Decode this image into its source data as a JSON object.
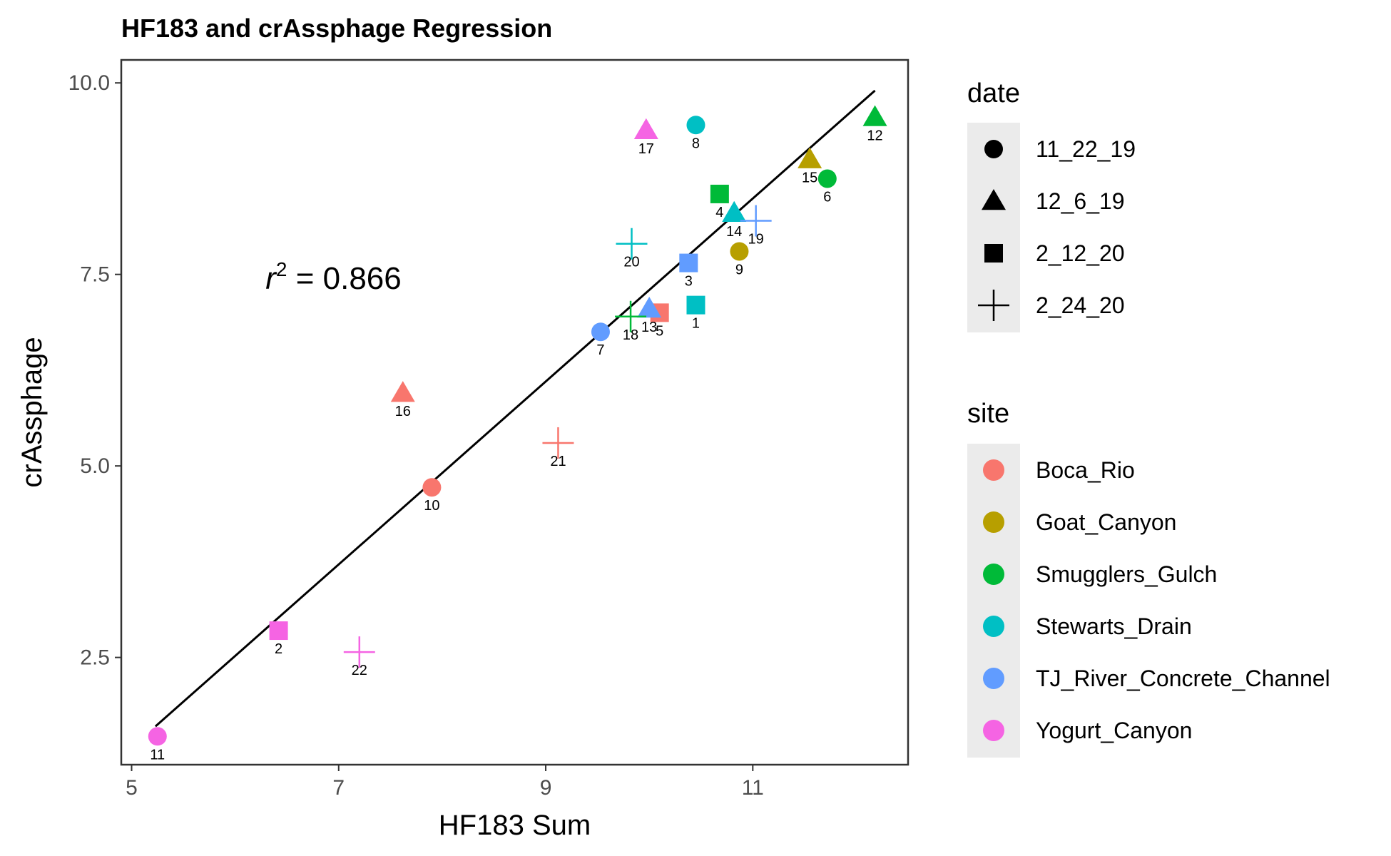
{
  "chart_data": {
    "type": "scatter",
    "title": "HF183 and crAssphage Regression",
    "xlabel": "HF183 Sum",
    "ylabel": "crAssphage",
    "xlim": [
      4.9,
      12.5
    ],
    "ylim": [
      1.1,
      10.3
    ],
    "x_ticks": [
      5,
      7,
      9,
      11
    ],
    "x_tick_labels": [
      "5",
      "7",
      "9",
      "11"
    ],
    "y_ticks": [
      2.5,
      5.0,
      7.5,
      10.0
    ],
    "y_tick_labels": [
      "2.5",
      "5.0",
      "7.5",
      "10.0"
    ],
    "grid": false,
    "annotation": {
      "prefix": "r",
      "superscript": "2",
      "text": " = 0.866",
      "x": 6.95,
      "y": 7.45
    },
    "regression_line": {
      "x0": 5.23,
      "y0": 1.6,
      "x1": 12.18,
      "y1": 9.9
    },
    "points": [
      {
        "label": "1",
        "x": 10.45,
        "y": 7.1,
        "date": "2_12_20",
        "site": "Stewarts_Drain"
      },
      {
        "label": "2",
        "x": 6.42,
        "y": 2.85,
        "date": "2_12_20",
        "site": "Yogurt_Canyon"
      },
      {
        "label": "3",
        "x": 10.38,
        "y": 7.65,
        "date": "2_12_20",
        "site": "TJ_River_Concrete_Channel"
      },
      {
        "label": "4",
        "x": 10.68,
        "y": 8.55,
        "date": "2_12_20",
        "site": "Smugglers_Gulch"
      },
      {
        "label": "5",
        "x": 10.1,
        "y": 7.0,
        "date": "2_12_20",
        "site": "Boca_Rio"
      },
      {
        "label": "6",
        "x": 11.72,
        "y": 8.75,
        "date": "11_22_19",
        "site": "Smugglers_Gulch"
      },
      {
        "label": "7",
        "x": 9.53,
        "y": 6.75,
        "date": "11_22_19",
        "site": "TJ_River_Concrete_Channel"
      },
      {
        "label": "8",
        "x": 10.45,
        "y": 9.45,
        "date": "11_22_19",
        "site": "Stewarts_Drain"
      },
      {
        "label": "9",
        "x": 10.87,
        "y": 7.8,
        "date": "11_22_19",
        "site": "Goat_Canyon"
      },
      {
        "label": "10",
        "x": 7.9,
        "y": 4.72,
        "date": "11_22_19",
        "site": "Boca_Rio"
      },
      {
        "label": "11",
        "x": 5.25,
        "y": 1.47,
        "date": "11_22_19",
        "site": "Yogurt_Canyon"
      },
      {
        "label": "12",
        "x": 12.18,
        "y": 9.55,
        "date": "12_6_19",
        "site": "Smugglers_Gulch"
      },
      {
        "label": "13",
        "x": 10.0,
        "y": 7.05,
        "date": "12_6_19",
        "site": "TJ_River_Concrete_Channel"
      },
      {
        "label": "14",
        "x": 10.82,
        "y": 8.3,
        "date": "12_6_19",
        "site": "Stewarts_Drain"
      },
      {
        "label": "15",
        "x": 11.55,
        "y": 9.0,
        "date": "12_6_19",
        "site": "Goat_Canyon"
      },
      {
        "label": "16",
        "x": 7.62,
        "y": 5.95,
        "date": "12_6_19",
        "site": "Boca_Rio"
      },
      {
        "label": "17",
        "x": 9.97,
        "y": 9.38,
        "date": "12_6_19",
        "site": "Yogurt_Canyon"
      },
      {
        "label": "18",
        "x": 9.82,
        "y": 6.95,
        "date": "2_24_20",
        "site": "Smugglers_Gulch"
      },
      {
        "label": "19",
        "x": 11.03,
        "y": 8.2,
        "date": "2_24_20",
        "site": "TJ_River_Concrete_Channel"
      },
      {
        "label": "20",
        "x": 9.83,
        "y": 7.9,
        "date": "2_24_20",
        "site": "Stewarts_Drain"
      },
      {
        "label": "21",
        "x": 9.12,
        "y": 5.3,
        "date": "2_24_20",
        "site": "Boca_Rio"
      },
      {
        "label": "22",
        "x": 7.2,
        "y": 2.57,
        "date": "2_24_20",
        "site": "Yogurt_Canyon"
      }
    ],
    "legend_placement": "right",
    "legend_date": {
      "title": "date",
      "items": [
        {
          "label": "11_22_19",
          "shape": "circle"
        },
        {
          "label": "12_6_19",
          "shape": "triangle"
        },
        {
          "label": "2_12_20",
          "shape": "square"
        },
        {
          "label": "2_24_20",
          "shape": "plus"
        }
      ]
    },
    "legend_site": {
      "title": "site",
      "items": [
        {
          "label": "Boca_Rio",
          "color": "#F8766D"
        },
        {
          "label": "Goat_Canyon",
          "color": "#B79F00"
        },
        {
          "label": "Smugglers_Gulch",
          "color": "#00BA38"
        },
        {
          "label": "Stewarts_Drain",
          "color": "#00BFC4"
        },
        {
          "label": "TJ_River_Concrete_Channel",
          "color": "#619CFF"
        },
        {
          "label": "Yogurt_Canyon",
          "color": "#F564E3"
        }
      ]
    }
  }
}
